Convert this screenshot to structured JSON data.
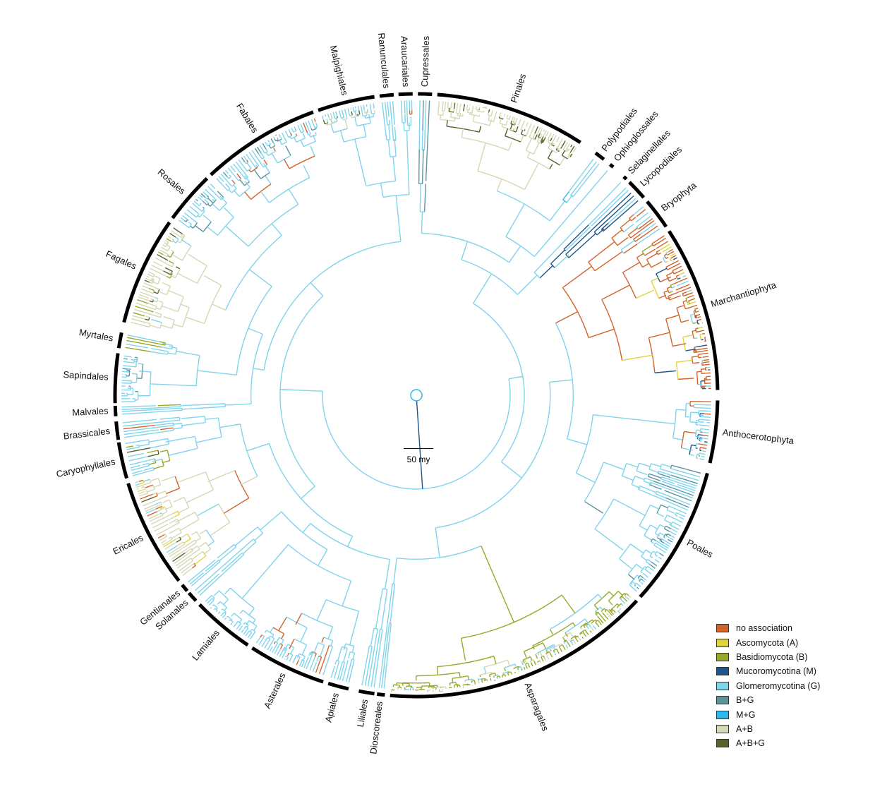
{
  "legend": [
    {
      "key": "none",
      "label": "no association",
      "color": "#d2642a"
    },
    {
      "key": "A",
      "label": "Ascomycota (A)",
      "color": "#e0d43c"
    },
    {
      "key": "B",
      "label": "Basidiomycota (B)",
      "color": "#97a92b"
    },
    {
      "key": "M",
      "label": "Mucoromycotina (M)",
      "color": "#1f5489"
    },
    {
      "key": "G",
      "label": "Glomeromycotina (G)",
      "color": "#80d4ec"
    },
    {
      "key": "BG",
      "label": "B+G",
      "color": "#5f949f"
    },
    {
      "key": "MG",
      "label": "M+G",
      "color": "#2cb8ea"
    },
    {
      "key": "AB",
      "label": "A+B",
      "color": "#d7d7b5"
    },
    {
      "key": "ABG",
      "label": "A+B+G",
      "color": "#556229"
    }
  ],
  "scale_bar": {
    "label": "50 my"
  },
  "clades": [
    {
      "name": "Cupressales",
      "start": 0.3,
      "end": 3,
      "assoc": [
        "G",
        "BG"
      ]
    },
    {
      "name": "Pinales",
      "start": 4,
      "end": 33,
      "assoc": [
        "AB",
        "ABG"
      ]
    },
    {
      "name": "Polypodiales",
      "start": 36.5,
      "end": 38.5,
      "assoc": [
        "G",
        "MG"
      ]
    },
    {
      "name": "Ophioglossales",
      "start": 40,
      "end": 40.8,
      "assoc": [
        "G",
        "none"
      ]
    },
    {
      "name": "Selaginellales",
      "start": 43.5,
      "end": 44.2,
      "assoc": [
        "G",
        "none"
      ]
    },
    {
      "name": "Lycopodiales",
      "start": 45,
      "end": 49,
      "assoc": [
        "M",
        "G"
      ]
    },
    {
      "name": "Bryophyta",
      "start": 50,
      "end": 56,
      "assoc": [
        "none",
        "G"
      ]
    },
    {
      "name": "Marchantiophyta",
      "start": 57,
      "end": 89,
      "assoc": [
        "none",
        "B",
        "A",
        "G",
        "M"
      ]
    },
    {
      "name": "Anthocerotophyta",
      "start": 91,
      "end": 103,
      "assoc": [
        "G",
        "M",
        "none"
      ]
    },
    {
      "name": "Poales",
      "start": 105,
      "end": 132,
      "assoc": [
        "G",
        "BG"
      ]
    },
    {
      "name": "Asparagales",
      "start": 133,
      "end": 185,
      "assoc": [
        "B",
        "AB",
        "G"
      ]
    },
    {
      "name": "Dioscoreales",
      "start": 186,
      "end": 187.5,
      "assoc": [
        "G"
      ]
    },
    {
      "name": "Liliales",
      "start": 188,
      "end": 191,
      "assoc": [
        "G"
      ]
    },
    {
      "name": "Apiales",
      "start": 193,
      "end": 197,
      "assoc": [
        "G"
      ]
    },
    {
      "name": "Asterales",
      "start": 198,
      "end": 213,
      "assoc": [
        "G",
        "none"
      ]
    },
    {
      "name": "Lamiales",
      "start": 214,
      "end": 226,
      "assoc": [
        "G"
      ]
    },
    {
      "name": "Solanales",
      "start": 227,
      "end": 229,
      "assoc": [
        "G"
      ]
    },
    {
      "name": "Gentianales",
      "start": 229.5,
      "end": 231,
      "assoc": [
        "G"
      ]
    },
    {
      "name": "Ericales",
      "start": 232,
      "end": 253,
      "assoc": [
        "AB",
        "ABG",
        "A",
        "G",
        "none"
      ]
    },
    {
      "name": "Caryophyllales",
      "start": 254,
      "end": 261,
      "assoc": [
        "G",
        "B",
        "ABG"
      ]
    },
    {
      "name": "Brassicales",
      "start": 261.5,
      "end": 265,
      "assoc": [
        "G",
        "none"
      ]
    },
    {
      "name": "Malvales",
      "start": 266,
      "end": 268,
      "assoc": [
        "G",
        "B"
      ]
    },
    {
      "name": "Sapindales",
      "start": 268.5,
      "end": 278,
      "assoc": [
        "G",
        "BG"
      ]
    },
    {
      "name": "Myrtales",
      "start": 279,
      "end": 282,
      "assoc": [
        "G",
        "B"
      ]
    },
    {
      "name": "Fagales",
      "start": 284,
      "end": 305,
      "assoc": [
        "AB",
        "ABG",
        "G",
        "B"
      ]
    },
    {
      "name": "Rosales",
      "start": 306,
      "end": 316,
      "assoc": [
        "G",
        "BG"
      ]
    },
    {
      "name": "Fabales",
      "start": 317,
      "end": 340,
      "assoc": [
        "G",
        "BG",
        "none"
      ]
    },
    {
      "name": "Malpighiales",
      "start": 341,
      "end": 352,
      "assoc": [
        "G",
        "AB",
        "ABG"
      ]
    },
    {
      "name": "Ranunculales",
      "start": 353,
      "end": 355.7,
      "assoc": [
        "G"
      ]
    },
    {
      "name": "Araucariales",
      "start": 356.6,
      "end": 359.3,
      "assoc": [
        "G",
        "none"
      ]
    }
  ]
}
